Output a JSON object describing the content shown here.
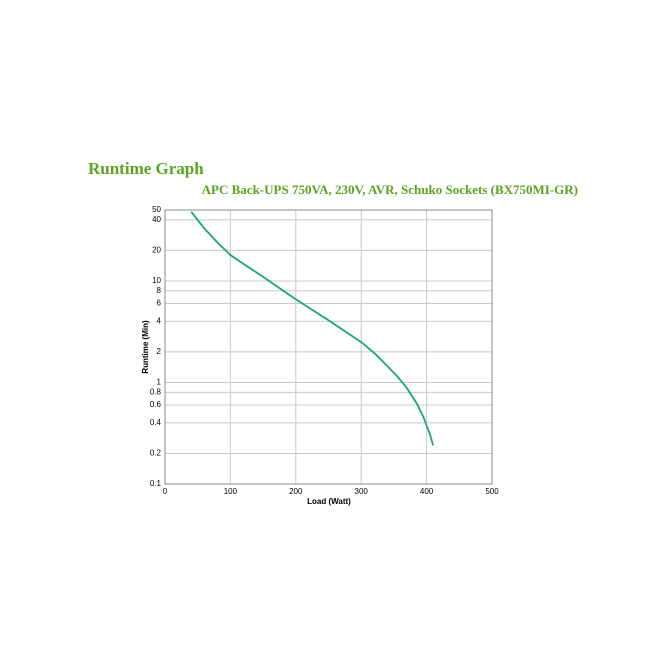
{
  "chart_data": {
    "type": "line",
    "title": "Runtime Graph",
    "subtitle": "APC Back-UPS 750VA, 230V, AVR, Schuko Sockets (BX750MI-GR)",
    "x_label": "Load (Watt)",
    "y_label": "Runtime (Min)",
    "x": [
      40,
      60,
      80,
      100,
      125,
      150,
      175,
      200,
      225,
      250,
      275,
      300,
      320,
      340,
      355,
      370,
      385,
      395,
      405,
      410
    ],
    "values": [
      48,
      33,
      24,
      18,
      14,
      11,
      8.5,
      6.6,
      5.2,
      4.1,
      3.2,
      2.5,
      1.95,
      1.45,
      1.15,
      0.88,
      0.62,
      0.46,
      0.31,
      0.24
    ],
    "color": "#1aa86a",
    "xlim": [
      0,
      500
    ],
    "xticks": [
      0,
      100,
      200,
      300,
      400,
      500
    ],
    "ylim": [
      0.1,
      50
    ],
    "yticks": [
      0.1,
      0.2,
      0.4,
      0.6,
      0.8,
      1,
      2,
      4,
      6,
      8,
      10,
      20,
      40,
      50
    ],
    "log_y": true,
    "grid": true
  }
}
